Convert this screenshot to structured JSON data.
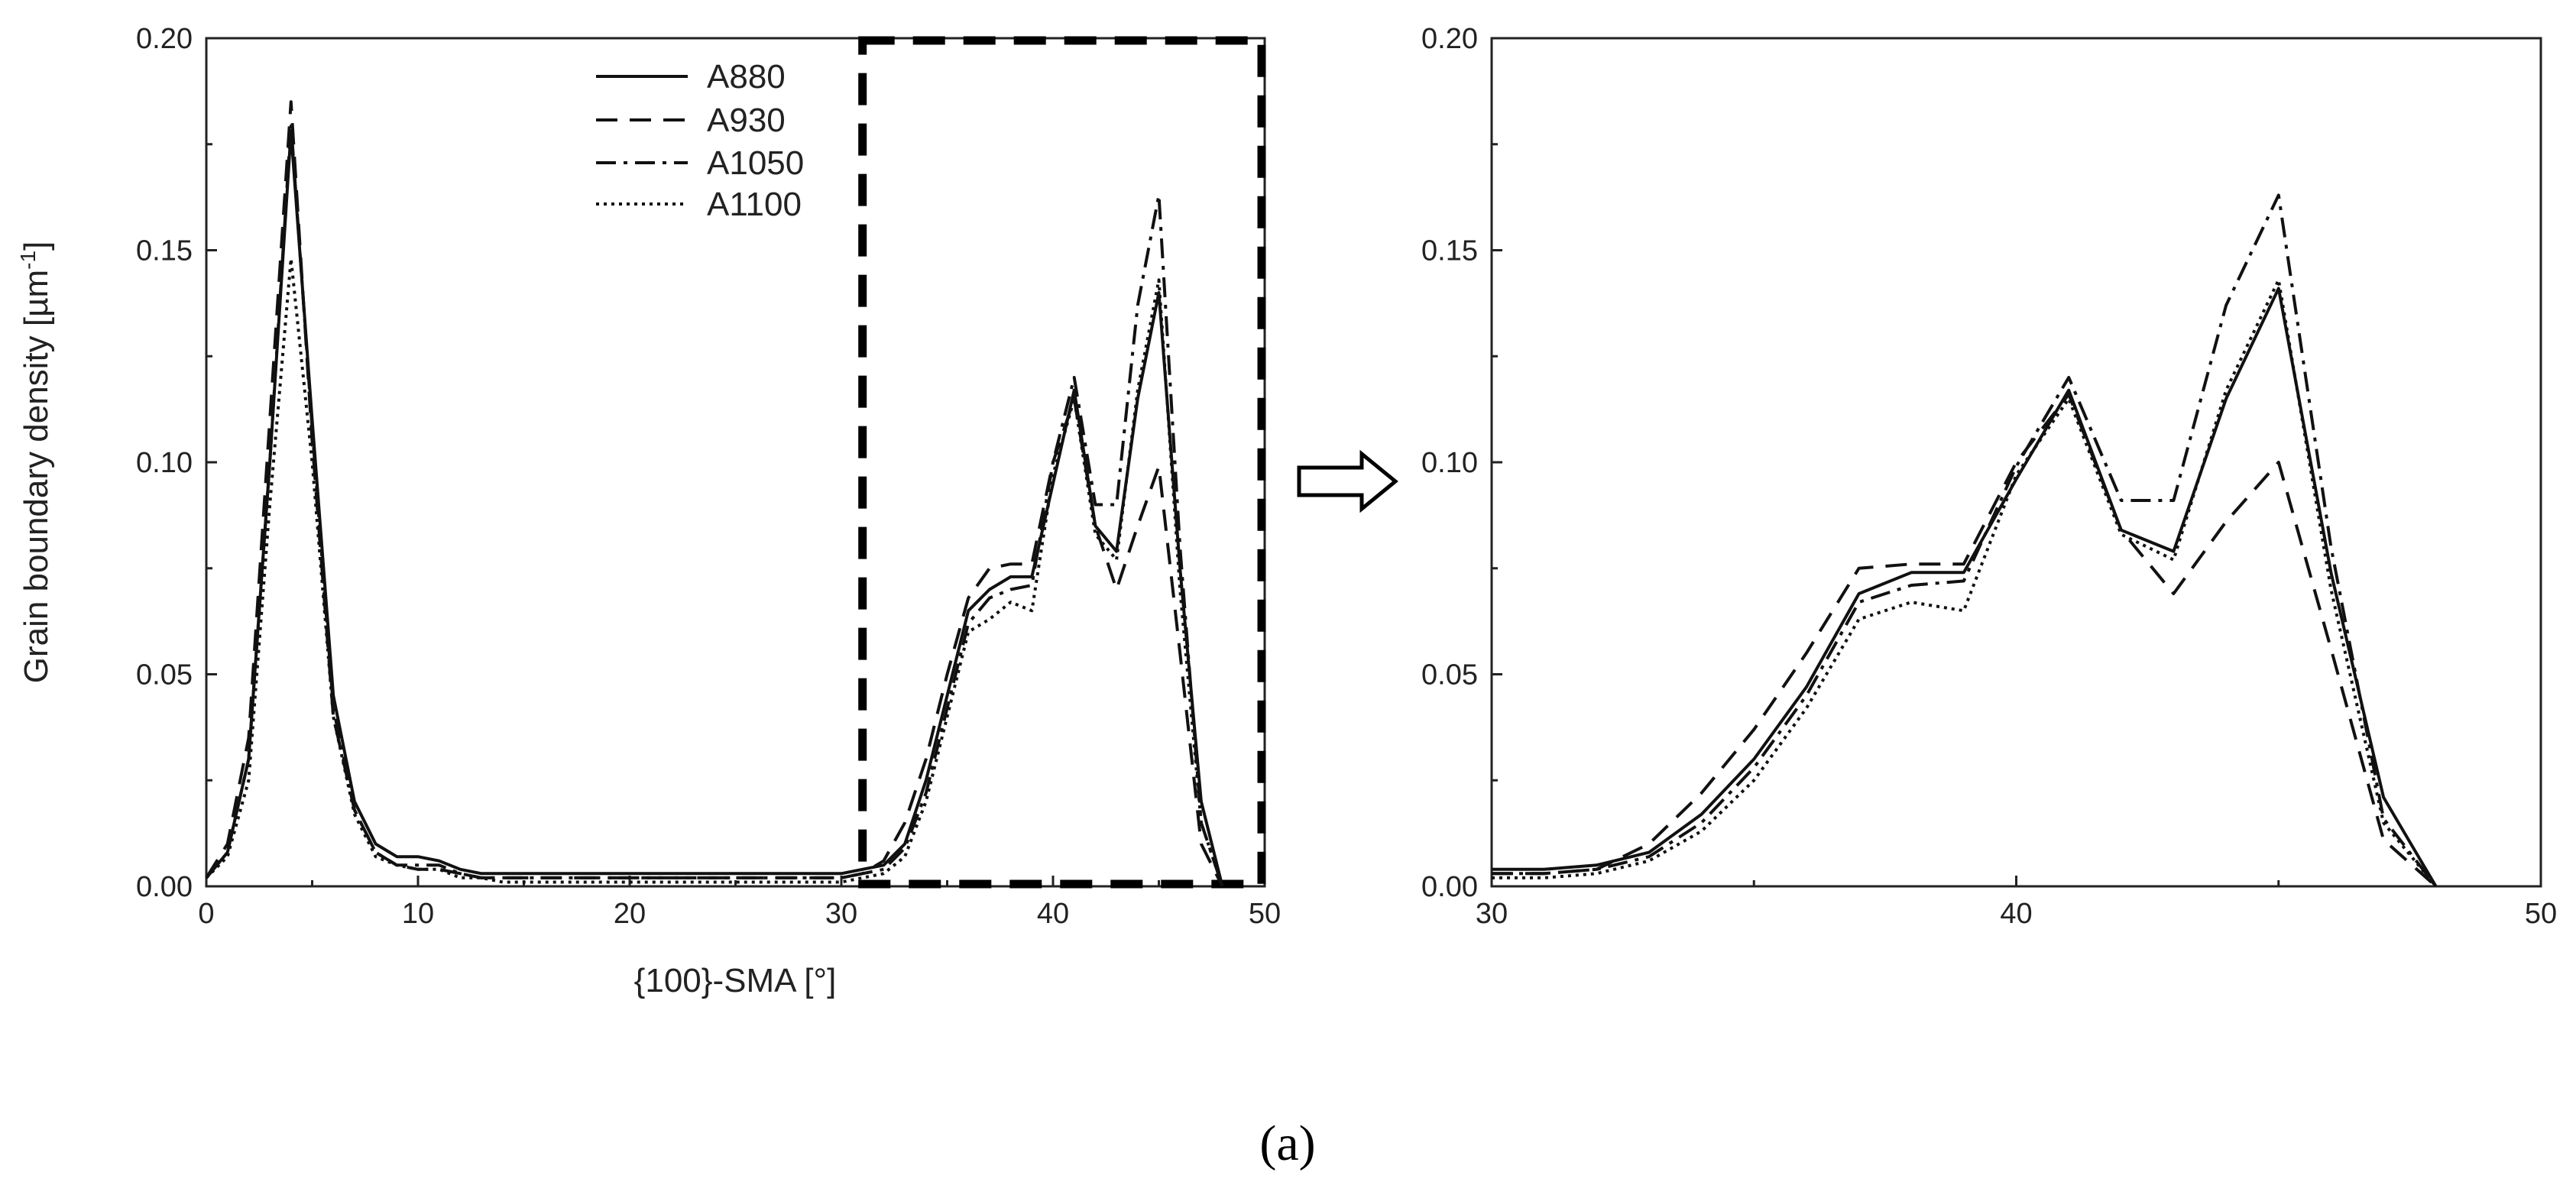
{
  "chart_data": [
    {
      "type": "line",
      "panel": "left",
      "title": "",
      "xlabel": "{100}-SMA [°]",
      "ylabel_prefix": "Grain boundary density [µm",
      "ylabel_sup": "-1",
      "ylabel_suffix": "]",
      "xlim": [
        0,
        50
      ],
      "ylim": [
        0,
        0.2
      ],
      "xticks": [
        "0",
        "10",
        "20",
        "30",
        "40",
        "50"
      ],
      "yticks": [
        "0.00",
        "0.05",
        "0.10",
        "0.15",
        "0.20"
      ],
      "legend_position": "top-center",
      "zoom_region_x": [
        31,
        50
      ],
      "series": [
        {
          "name": "A880",
          "x": [
            0,
            1,
            2,
            3,
            4,
            5,
            6,
            7,
            8,
            9,
            10,
            11,
            12,
            13,
            14,
            15,
            16,
            18,
            20,
            22,
            24,
            26,
            28,
            30,
            31,
            32,
            33,
            34,
            35,
            36,
            37,
            38,
            39,
            40,
            41,
            42,
            43,
            44,
            45,
            46,
            47,
            48
          ],
          "y": [
            0.002,
            0.008,
            0.03,
            0.1,
            0.178,
            0.11,
            0.045,
            0.02,
            0.01,
            0.007,
            0.007,
            0.006,
            0.004,
            0.003,
            0.003,
            0.003,
            0.003,
            0.003,
            0.003,
            0.003,
            0.003,
            0.003,
            0.003,
            0.003,
            0.004,
            0.005,
            0.01,
            0.025,
            0.045,
            0.065,
            0.07,
            0.073,
            0.073,
            0.095,
            0.117,
            0.085,
            0.079,
            0.115,
            0.14,
            0.075,
            0.02,
            0
          ]
        },
        {
          "name": "A930",
          "x": [
            0,
            1,
            2,
            3,
            4,
            5,
            6,
            7,
            8,
            9,
            10,
            11,
            12,
            13,
            14,
            15,
            16,
            18,
            20,
            22,
            24,
            26,
            28,
            30,
            31,
            32,
            33,
            34,
            35,
            36,
            37,
            38,
            39,
            40,
            41,
            42,
            43,
            44,
            45,
            46,
            47,
            48
          ],
          "y": [
            0.002,
            0.01,
            0.035,
            0.11,
            0.185,
            0.105,
            0.04,
            0.018,
            0.008,
            0.005,
            0.004,
            0.004,
            0.003,
            0.002,
            0.002,
            0.002,
            0.002,
            0.002,
            0.002,
            0.002,
            0.002,
            0.002,
            0.002,
            0.002,
            0.003,
            0.006,
            0.015,
            0.03,
            0.05,
            0.068,
            0.075,
            0.076,
            0.076,
            0.1,
            0.115,
            0.085,
            0.07,
            0.085,
            0.099,
            0.055,
            0.01,
            0
          ]
        },
        {
          "name": "A1050",
          "x": [
            0,
            1,
            2,
            3,
            4,
            5,
            6,
            7,
            8,
            9,
            10,
            11,
            12,
            13,
            14,
            15,
            16,
            18,
            20,
            22,
            24,
            26,
            28,
            30,
            31,
            32,
            33,
            34,
            35,
            36,
            37,
            38,
            39,
            40,
            41,
            42,
            43,
            44,
            45,
            46,
            47,
            48
          ],
          "y": [
            0.002,
            0.008,
            0.03,
            0.1,
            0.18,
            0.108,
            0.042,
            0.018,
            0.008,
            0.005,
            0.005,
            0.005,
            0.003,
            0.002,
            0.002,
            0.002,
            0.002,
            0.002,
            0.002,
            0.002,
            0.002,
            0.002,
            0.002,
            0.002,
            0.003,
            0.004,
            0.009,
            0.022,
            0.042,
            0.062,
            0.068,
            0.07,
            0.071,
            0.1,
            0.12,
            0.09,
            0.09,
            0.137,
            0.163,
            0.08,
            0.015,
            0
          ]
        },
        {
          "name": "A1100",
          "x": [
            0,
            1,
            2,
            3,
            4,
            5,
            6,
            7,
            8,
            9,
            10,
            11,
            12,
            13,
            14,
            15,
            16,
            18,
            20,
            22,
            24,
            26,
            28,
            30,
            31,
            32,
            33,
            34,
            35,
            36,
            37,
            38,
            39,
            40,
            41,
            42,
            43,
            44,
            45,
            46,
            47,
            48
          ],
          "y": [
            0.002,
            0.007,
            0.025,
            0.09,
            0.148,
            0.1,
            0.04,
            0.017,
            0.007,
            0.005,
            0.004,
            0.004,
            0.002,
            0.002,
            0.001,
            0.001,
            0.001,
            0.001,
            0.001,
            0.001,
            0.001,
            0.001,
            0.001,
            0.001,
            0.002,
            0.003,
            0.007,
            0.02,
            0.04,
            0.06,
            0.063,
            0.067,
            0.065,
            0.097,
            0.115,
            0.083,
            0.077,
            0.117,
            0.143,
            0.07,
            0.015,
            0
          ]
        }
      ]
    },
    {
      "type": "line",
      "panel": "right",
      "title": "",
      "xlabel": "",
      "ylabel": "",
      "xlim": [
        30,
        50
      ],
      "ylim": [
        0,
        0.2
      ],
      "xticks": [
        "30",
        "40",
        "50"
      ],
      "yticks": [
        "0.00",
        "0.05",
        "0.10",
        "0.15",
        "0.20"
      ],
      "series": [
        {
          "name": "A880",
          "x": [
            30,
            31,
            32,
            33,
            34,
            35,
            36,
            37,
            38,
            39,
            40,
            41,
            42,
            43,
            44,
            45,
            46,
            47,
            48
          ],
          "y": [
            0.004,
            0.004,
            0.005,
            0.008,
            0.017,
            0.03,
            0.047,
            0.069,
            0.074,
            0.074,
            0.096,
            0.117,
            0.084,
            0.079,
            0.115,
            0.141,
            0.074,
            0.021,
            0
          ]
        },
        {
          "name": "A930",
          "x": [
            30,
            31,
            32,
            33,
            34,
            35,
            36,
            37,
            38,
            39,
            40,
            41,
            42,
            43,
            44,
            45,
            46,
            47,
            48
          ],
          "y": [
            0.003,
            0.003,
            0.004,
            0.01,
            0.022,
            0.037,
            0.055,
            0.075,
            0.076,
            0.076,
            0.1,
            0.116,
            0.084,
            0.069,
            0.086,
            0.1,
            0.056,
            0.011,
            0
          ]
        },
        {
          "name": "A1050",
          "x": [
            30,
            31,
            32,
            33,
            34,
            35,
            36,
            37,
            38,
            39,
            40,
            41,
            42,
            43,
            44,
            45,
            46,
            47,
            48
          ],
          "y": [
            0.003,
            0.003,
            0.004,
            0.007,
            0.015,
            0.028,
            0.045,
            0.067,
            0.071,
            0.072,
            0.099,
            0.12,
            0.091,
            0.091,
            0.137,
            0.163,
            0.08,
            0.016,
            0
          ]
        },
        {
          "name": "A1100",
          "x": [
            30,
            31,
            32,
            33,
            34,
            35,
            36,
            37,
            38,
            39,
            40,
            41,
            42,
            43,
            44,
            45,
            46,
            47,
            48
          ],
          "y": [
            0.002,
            0.002,
            0.003,
            0.006,
            0.013,
            0.025,
            0.042,
            0.063,
            0.067,
            0.065,
            0.097,
            0.115,
            0.083,
            0.077,
            0.117,
            0.143,
            0.07,
            0.015,
            0
          ]
        }
      ]
    }
  ],
  "caption": "(a)",
  "styles": {
    "line_color": "#111111",
    "A880": "solid",
    "A930": "dashed",
    "A1050": "dash-dot",
    "A1100": "dotted"
  }
}
